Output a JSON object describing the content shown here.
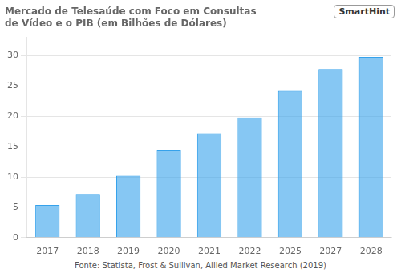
{
  "chart_data": {
    "type": "bar",
    "title": "Mercado de Telesaúde com Foco em Consultas\nde Vídeo e o PIB (em Bilhões de Dólares)",
    "categories": [
      "2017",
      "2018",
      "2019",
      "2020",
      "2021",
      "2022",
      "2025",
      "2027",
      "2028"
    ],
    "values": [
      5.4,
      7.2,
      10.2,
      14.5,
      17.2,
      19.8,
      24.2,
      27.8,
      29.8
    ],
    "ylim": [
      0,
      33
    ],
    "yticks": [
      0,
      5,
      10,
      15,
      20,
      25,
      30
    ],
    "grid": true,
    "annotations": [
      "Fonte: Statista, Frost & Sullivan, Allied Market Research (2019)",
      "SmartHint"
    ]
  }
}
